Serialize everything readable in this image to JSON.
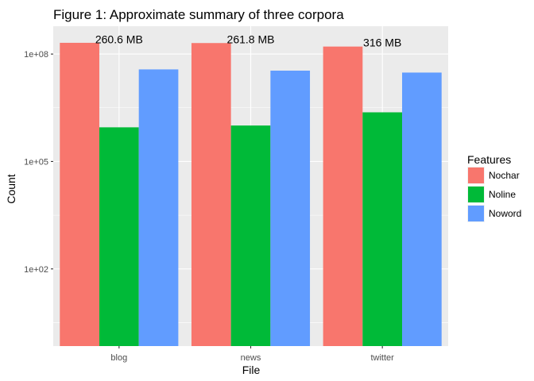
{
  "chart_data": {
    "type": "bar",
    "title": "Figure 1: Approximate summary of three corpora",
    "xlabel": "File",
    "ylabel": "Count",
    "categories": [
      "blog",
      "news",
      "twitter"
    ],
    "y_scale": "log10",
    "ylim": [
      0.7,
      600000000
    ],
    "y_ticks": [
      {
        "value": 100,
        "label": "1e+02"
      },
      {
        "value": 100000,
        "label": "1e+05"
      },
      {
        "value": 100000000,
        "label": "1e+08"
      }
    ],
    "legend": {
      "title": "Features",
      "position": "right"
    },
    "grid": true,
    "series": [
      {
        "name": "Nochar",
        "color": "#F8766D",
        "values": [
          206000000,
          203000000,
          162000000
        ]
      },
      {
        "name": "Noline",
        "color": "#00BA38",
        "values": [
          900000,
          1010000,
          2360000
        ]
      },
      {
        "name": "Noword",
        "color": "#619CFF",
        "values": [
          37300000,
          34400000,
          30400000
        ]
      }
    ],
    "annotations": [
      {
        "category": "blog",
        "text": "260.6 MB",
        "y": 260000000
      },
      {
        "category": "news",
        "text": "261.8 MB",
        "y": 260000000
      },
      {
        "category": "twitter",
        "text": "316 MB",
        "y": 210000000
      }
    ]
  }
}
